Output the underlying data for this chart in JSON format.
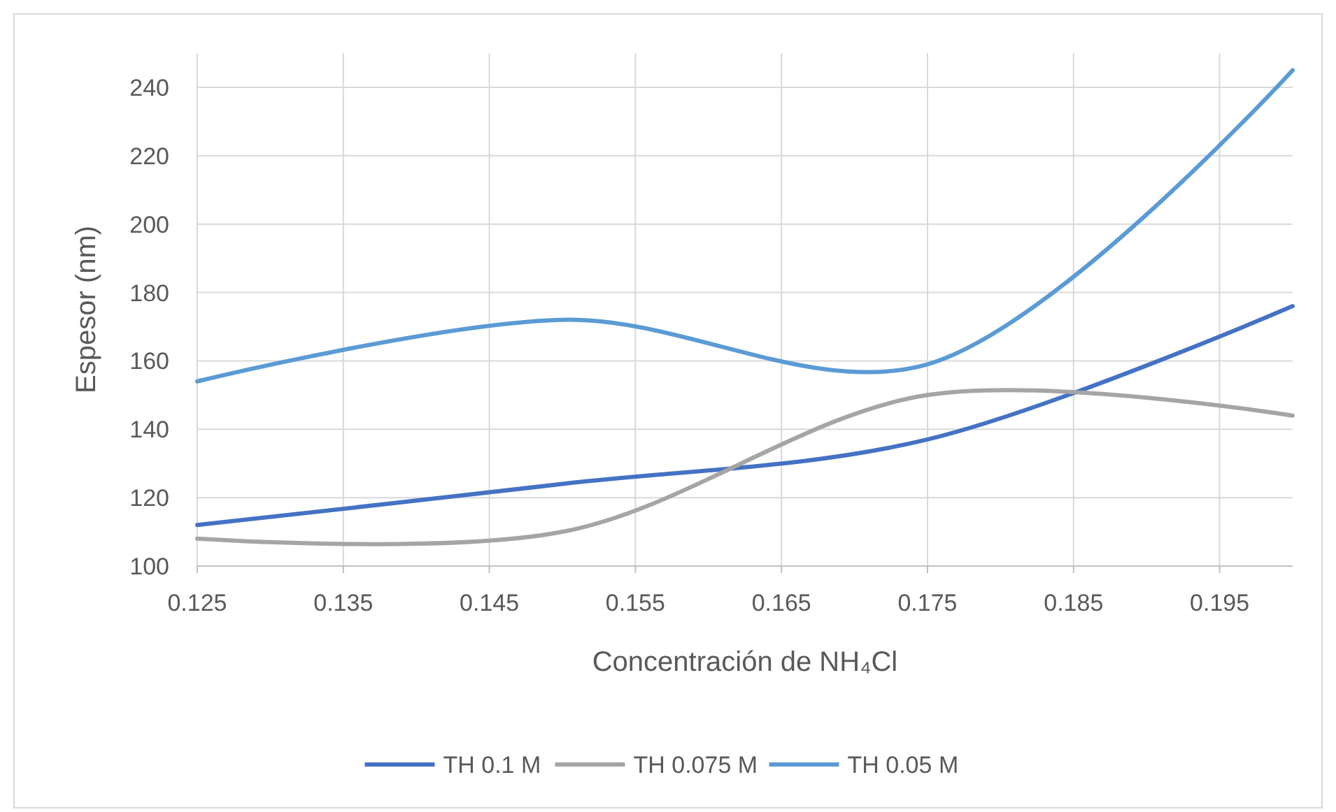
{
  "chart_data": {
    "type": "line",
    "xlabel": "Concentración de NH₄Cl",
    "ylabel": "Espesor (nm)",
    "x": [
      0.125,
      0.15,
      0.175,
      0.2
    ],
    "xlim": [
      0.125,
      0.2
    ],
    "xticks": [
      {
        "value": 0.125,
        "label": "0.125"
      },
      {
        "value": 0.135,
        "label": "0.135"
      },
      {
        "value": 0.145,
        "label": "0.145"
      },
      {
        "value": 0.155,
        "label": "0.155"
      },
      {
        "value": 0.165,
        "label": "0.165"
      },
      {
        "value": 0.175,
        "label": "0.175"
      },
      {
        "value": 0.185,
        "label": "0.185"
      },
      {
        "value": 0.195,
        "label": "0.195"
      }
    ],
    "ylim": [
      100,
      250
    ],
    "yticks": [
      100,
      120,
      140,
      160,
      180,
      200,
      220,
      240
    ],
    "grid": true,
    "legend": "bottom",
    "marker": "none",
    "line_style": "solid",
    "series": [
      {
        "name": "TH 0.1 M",
        "color": "#4472c4",
        "values": [
          112,
          124,
          137,
          176
        ]
      },
      {
        "name": "TH 0.075 M",
        "color": "#a5a5a5",
        "values": [
          108,
          110,
          150,
          144
        ]
      },
      {
        "name": "TH 0.05 M",
        "color": "#5b9bd5",
        "values": [
          154,
          172,
          159,
          245
        ]
      }
    ]
  }
}
